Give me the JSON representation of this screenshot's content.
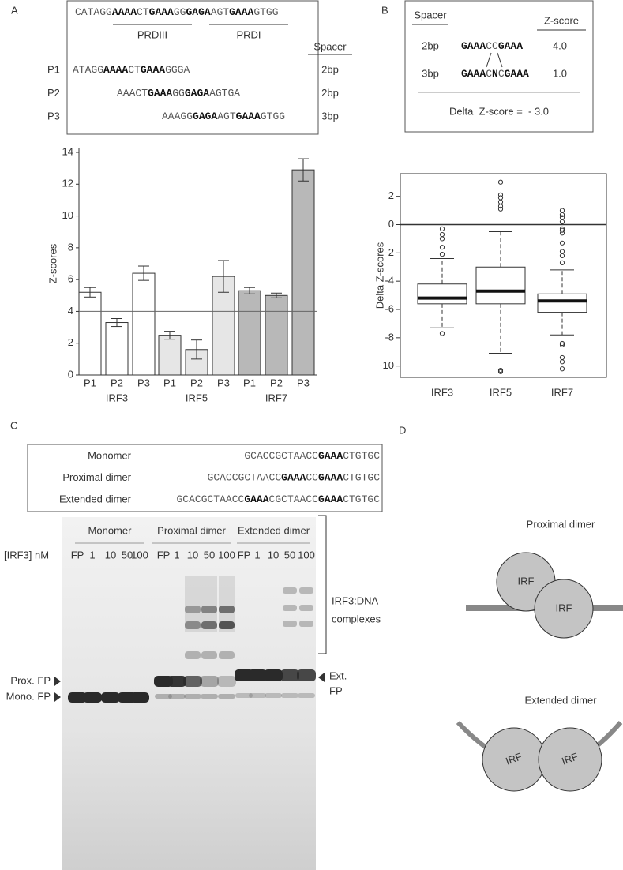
{
  "panel_labels": [
    "A",
    "B",
    "C",
    "D"
  ],
  "panel_a": {
    "sequence": [
      {
        "text": "CATAGG",
        "bold": false
      },
      {
        "text": "AAAA",
        "bold": true
      },
      {
        "text": "CT",
        "bold": false
      },
      {
        "text": "GAAA",
        "bold": true
      },
      {
        "text": "GG",
        "bold": false
      },
      {
        "text": "GAGA",
        "bold": true
      },
      {
        "text": "AGT",
        "bold": false
      },
      {
        "text": "GAAA",
        "bold": true
      },
      {
        "text": "GTGG",
        "bold": false
      }
    ],
    "regions": [
      "PRDIII",
      "PRDI"
    ],
    "spacer_header": "Spacer",
    "probes": [
      {
        "name": "P1",
        "spacer": "2bp",
        "sequence": [
          {
            "text": "ATAGG",
            "bold": false
          },
          {
            "text": "AAAA",
            "bold": true
          },
          {
            "text": "CT",
            "bold": false
          },
          {
            "text": "GAAA",
            "bold": true
          },
          {
            "text": "GGGA",
            "bold": false
          }
        ]
      },
      {
        "name": "P2",
        "spacer": "2bp",
        "sequence": [
          {
            "text": "AAACT",
            "bold": false
          },
          {
            "text": "GAAA",
            "bold": true
          },
          {
            "text": "GG",
            "bold": false
          },
          {
            "text": "GAGA",
            "bold": true
          },
          {
            "text": "AGTGA",
            "bold": false
          }
        ]
      },
      {
        "name": "P3",
        "spacer": "3bp",
        "sequence": [
          {
            "text": "AAAGG",
            "bold": false
          },
          {
            "text": "GAGA",
            "bold": true
          },
          {
            "text": "AGT",
            "bold": false
          },
          {
            "text": "GAAA",
            "bold": true
          },
          {
            "text": "GTGG",
            "bold": false
          }
        ]
      }
    ]
  },
  "panel_b": {
    "spacer_header": "Spacer",
    "zscore_header": "Z-score",
    "rows": [
      {
        "spacer": "2bp",
        "zscore": "4.0",
        "sequence": [
          {
            "text": "GAAA",
            "bold": true
          },
          {
            "text": "CC",
            "bold": false
          },
          {
            "text": "GAAA",
            "bold": true
          }
        ]
      },
      {
        "spacer": "3bp",
        "zscore": "1.0",
        "sequence": [
          {
            "text": "GAAA",
            "bold": true
          },
          {
            "text": "C",
            "bold": false
          },
          {
            "text": "N",
            "bold": true
          },
          {
            "text": "C",
            "bold": false
          },
          {
            "text": "GAAA",
            "bold": true
          }
        ]
      }
    ],
    "delta": "Delta  Z-score =  - 3.0"
  },
  "chart_data": [
    {
      "type": "bar",
      "ylabel": "Z-scores",
      "categories": [
        "P1",
        "P2",
        "P3"
      ],
      "series": [
        {
          "name": "IRF3",
          "color": "#ffffff",
          "values": [
            5.2,
            3.3,
            6.4
          ],
          "errors": [
            0.3,
            0.25,
            0.45
          ]
        },
        {
          "name": "IRF5",
          "color": "#e6e6e6",
          "values": [
            2.5,
            1.6,
            6.2
          ],
          "errors": [
            0.25,
            0.6,
            1.0
          ]
        },
        {
          "name": "IRF7",
          "color": "#b8b8b8",
          "values": [
            5.3,
            5.0,
            12.9
          ],
          "errors": [
            0.2,
            0.15,
            0.7
          ]
        }
      ],
      "ylim": [
        0,
        14
      ],
      "yticks": [
        0,
        2,
        4,
        6,
        8,
        10,
        12,
        14
      ],
      "reference_line": 4
    },
    {
      "type": "box",
      "ylabel": "Delta Z-scores",
      "categories": [
        "IRF3",
        "IRF5",
        "IRF7"
      ],
      "boxes": [
        {
          "whislo": -7.3,
          "q1": -5.6,
          "med": -5.2,
          "q3": -4.2,
          "whishi": -2.4,
          "fliers": [
            -7.7,
            -2.1,
            -1.6,
            -1.0,
            -0.7,
            -0.3
          ]
        },
        {
          "whislo": -9.1,
          "q1": -5.6,
          "med": -4.7,
          "q3": -3.0,
          "whishi": -0.5,
          "fliers": [
            -10.4,
            -10.3,
            1.1,
            1.3,
            1.6,
            1.9,
            2.1,
            3.0
          ]
        },
        {
          "whislo": -7.8,
          "q1": -6.2,
          "med": -5.4,
          "q3": -4.9,
          "whishi": -3.2,
          "fliers": [
            -8.4,
            -8.5,
            -9.4,
            -9.7,
            -10.2,
            -2.7,
            -2.2,
            -1.9,
            -1.3,
            -0.6,
            -0.4,
            -0.3,
            0.2,
            0.5,
            0.7,
            1.0
          ]
        }
      ],
      "ylim": [
        -10.8,
        3.6
      ],
      "yticks": [
        -10,
        -8,
        -6,
        -4,
        -2,
        0,
        2
      ],
      "reference_line": 0
    }
  ],
  "panel_c": {
    "constructs": [
      {
        "name": "Monomer",
        "sequence": [
          {
            "text": "GCACCGCTAACC",
            "bold": false
          },
          {
            "text": "GAAA",
            "bold": true
          },
          {
            "text": "CTGTGC",
            "bold": false
          }
        ]
      },
      {
        "name": "Proximal dimer",
        "sequence": [
          {
            "text": "GCACCGCTAACC",
            "bold": false
          },
          {
            "text": "GAAA",
            "bold": true
          },
          {
            "text": "CC",
            "bold": false
          },
          {
            "text": "GAAA",
            "bold": true
          },
          {
            "text": "CTGTGC",
            "bold": false
          }
        ]
      },
      {
        "name": "Extended dimer",
        "sequence": [
          {
            "text": "GCACGCTAACC",
            "bold": false
          },
          {
            "text": "GAAA",
            "bold": true
          },
          {
            "text": "CGCTAACC",
            "bold": false
          },
          {
            "text": "GAAA",
            "bold": true
          },
          {
            "text": "CTGTGC",
            "bold": false
          }
        ]
      }
    ],
    "gel": {
      "groups": [
        "Monomer",
        "Proximal dimer",
        "Extended dimer"
      ],
      "concentration_label": "[IRF3] nM",
      "lanes": [
        "FP",
        "1",
        "10",
        "50",
        "100"
      ],
      "complex_label": [
        "IRF3:DNA",
        "complexes"
      ],
      "prox_marker": "Prox. FP",
      "mono_marker": "Mono. FP",
      "ext_marker": [
        "Ext.",
        "FP"
      ]
    }
  },
  "panel_d": {
    "proximal": {
      "title": "Proximal dimer",
      "units": [
        "IRF",
        "IRF"
      ]
    },
    "extended": {
      "title": "Extended dimer",
      "units": [
        "IRF",
        "IRF"
      ]
    }
  }
}
